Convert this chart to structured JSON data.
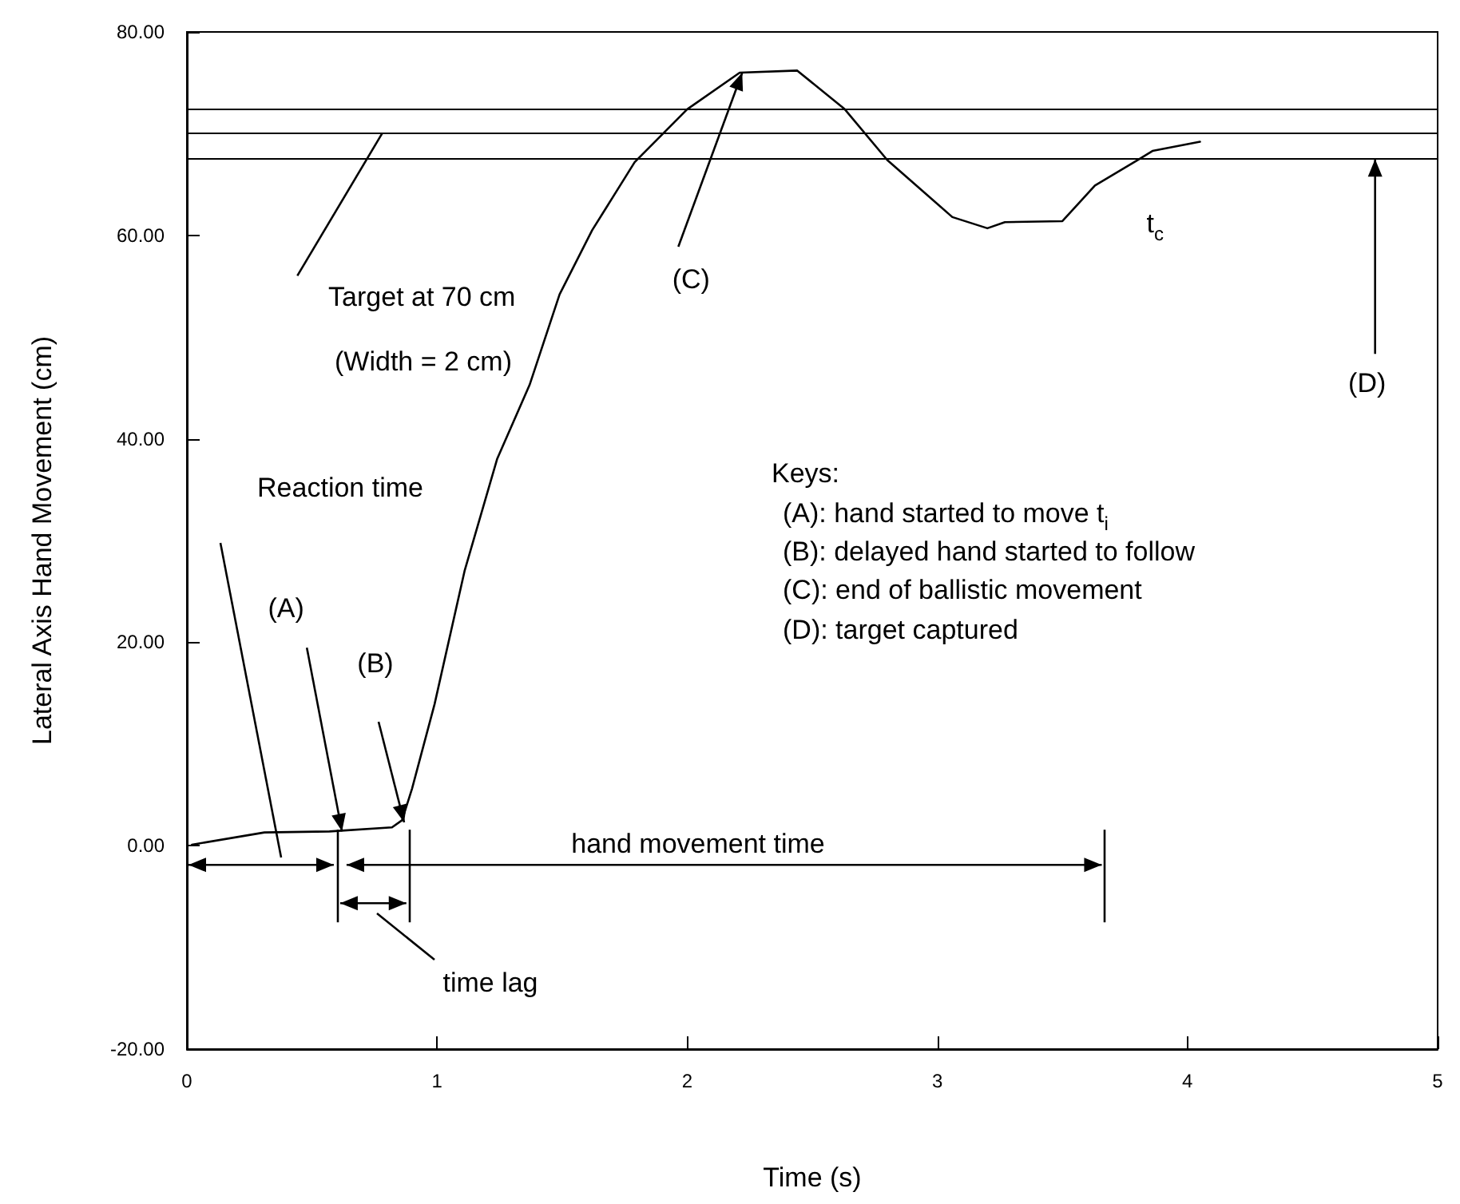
{
  "chart_data": {
    "type": "line",
    "xlabel": "Time (s)",
    "ylabel": "Lateral Axis Hand Movement (cm)",
    "x": [
      0.02,
      0.31,
      0.57,
      0.82,
      0.86,
      0.9,
      0.99,
      1.11,
      1.24,
      1.37,
      1.49,
      1.62,
      1.79,
      2.0,
      2.21,
      2.44,
      2.63,
      2.8,
      3.06,
      3.2,
      3.27,
      3.5,
      3.63,
      3.8,
      3.86,
      4.05
    ],
    "series": [
      {
        "color": "#000000",
        "values": [
          0.1,
          1.3,
          1.4,
          1.8,
          2.5,
          5.6,
          13.9,
          27,
          38,
          45.3,
          54.2,
          60.5,
          67.2,
          72.4,
          76,
          76.2,
          72.4,
          67.4,
          61.8,
          60.7,
          61.3,
          61.4,
          64.9,
          67.4,
          68.3,
          69.2
        ]
      }
    ],
    "xlim": [
      0,
      5
    ],
    "xticks": [
      0,
      1,
      2,
      3,
      4,
      5
    ],
    "ylim": [
      -20,
      80
    ],
    "yticks": [
      {
        "value": -20,
        "label": "-20.00"
      },
      {
        "value": 0,
        "label": "0.00"
      },
      {
        "value": 20,
        "label": "20.00"
      },
      {
        "value": 40,
        "label": "40.00"
      },
      {
        "value": 60,
        "label": "60.00"
      },
      {
        "value": 80,
        "label": "80.00"
      }
    ],
    "grid": false,
    "marker": "none",
    "line_style": "solid",
    "ref_lines": [
      {
        "axis": "y",
        "value": 72.5
      },
      {
        "axis": "y",
        "value": 70
      },
      {
        "axis": "y",
        "value": 67.5
      },
      {
        "axis": "x",
        "value": 0.6
      },
      {
        "axis": "x",
        "value": 0.89
      },
      {
        "axis": "x",
        "value": 3.67
      }
    ],
    "annotations": [
      {
        "text": "Target at 70 cm",
        "x": 0.78,
        "y": 70
      },
      "(Width = 2 cm)",
      "Reaction time",
      {
        "text": "(A)",
        "x": 0.62,
        "y": 1.4
      },
      "(B)",
      {
        "text": "(C)",
        "x": 2.22,
        "y": 76
      },
      {
        "text": "(D)",
        "x": 4.75,
        "y": 67.5
      },
      {
        "text": "t$_{c}$",
        "x": 3.8,
        "y": 67.4
      },
      "hand movement time",
      "time lag",
      "Keys:",
      "(A): hand started to move t$_{i}$",
      "(B): delayed hand started to follow",
      "(C): end of ballistic movement",
      "(D): target captured"
    ]
  }
}
